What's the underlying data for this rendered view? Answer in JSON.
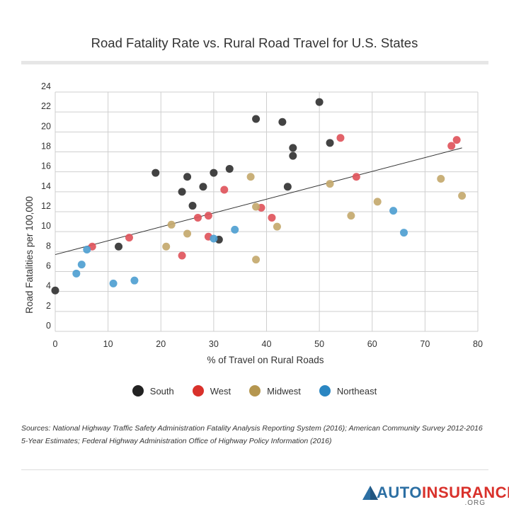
{
  "title": "Road Fatality Rate vs. Rural Road Travel for U.S. States",
  "sources": "Sources: National Highway Traffic Safety Administration Fatality Analysis Reporting System (2016); American Community Survey 2012-2016 5-Year Estimates; Federal Highway Administration Office of Highway Policy Information (2016)",
  "logo": {
    "text_a": "AUTO",
    "text_b": "INSURANCE",
    "suffix": ".ORG",
    "color_a": "#2c6fa3",
    "color_b": "#d9312b"
  },
  "chart_data": {
    "type": "scatter",
    "title": "Road Fatality Rate vs. Rural Road Travel for U.S. States",
    "xlabel": "% of Travel on Rural Roads",
    "ylabel": "Road Fatalities per 100,000",
    "xlim": [
      0,
      80
    ],
    "ylim": [
      0,
      24
    ],
    "xticks": [
      "0",
      "10",
      "20",
      "30",
      "40",
      "50",
      "60",
      "70",
      "80"
    ],
    "yticks": [
      "0",
      "2",
      "4",
      "6",
      "8",
      "10",
      "12",
      "14",
      "16",
      "18",
      "20",
      "22",
      "24"
    ],
    "grid": true,
    "legend_position": "bottom",
    "trendline": {
      "x": [
        0,
        77
      ],
      "y": [
        7.7,
        18.4
      ]
    },
    "series": [
      {
        "name": "South",
        "color": "#333333",
        "points": [
          [
            0,
            4.1
          ],
          [
            12,
            8.5
          ],
          [
            19,
            15.9
          ],
          [
            24,
            14.0
          ],
          [
            25,
            15.5
          ],
          [
            26,
            12.6
          ],
          [
            28,
            14.5
          ],
          [
            30,
            15.9
          ],
          [
            31,
            9.2
          ],
          [
            33,
            16.3
          ],
          [
            38,
            21.3
          ],
          [
            43,
            21.0
          ],
          [
            44,
            14.5
          ],
          [
            45,
            18.4
          ],
          [
            45,
            17.6
          ],
          [
            50,
            23.0
          ],
          [
            52,
            18.9
          ]
        ]
      },
      {
        "name": "West",
        "color": "#e0555c",
        "points": [
          [
            7,
            8.5
          ],
          [
            14,
            9.4
          ],
          [
            24,
            7.6
          ],
          [
            27,
            11.4
          ],
          [
            29,
            11.6
          ],
          [
            29,
            9.5
          ],
          [
            32,
            14.2
          ],
          [
            39,
            12.4
          ],
          [
            41,
            11.4
          ],
          [
            54,
            19.4
          ],
          [
            57,
            15.5
          ],
          [
            75,
            18.6
          ],
          [
            76,
            19.2
          ]
        ]
      },
      {
        "name": "Midwest",
        "color": "#c4a96e",
        "points": [
          [
            21,
            8.5
          ],
          [
            22,
            10.7
          ],
          [
            25,
            9.8
          ],
          [
            37,
            15.5
          ],
          [
            38,
            12.5
          ],
          [
            38,
            7.2
          ],
          [
            42,
            10.5
          ],
          [
            52,
            14.8
          ],
          [
            56,
            11.6
          ],
          [
            61,
            13.0
          ],
          [
            73,
            15.3
          ],
          [
            77,
            13.6
          ]
        ]
      },
      {
        "name": "Northeast",
        "color": "#4f9fd1",
        "points": [
          [
            4,
            5.8
          ],
          [
            5,
            6.7
          ],
          [
            6,
            8.2
          ],
          [
            11,
            4.8
          ],
          [
            15,
            5.1
          ],
          [
            30,
            9.3
          ],
          [
            34,
            10.2
          ],
          [
            64,
            12.1
          ],
          [
            66,
            9.9
          ]
        ]
      }
    ]
  }
}
